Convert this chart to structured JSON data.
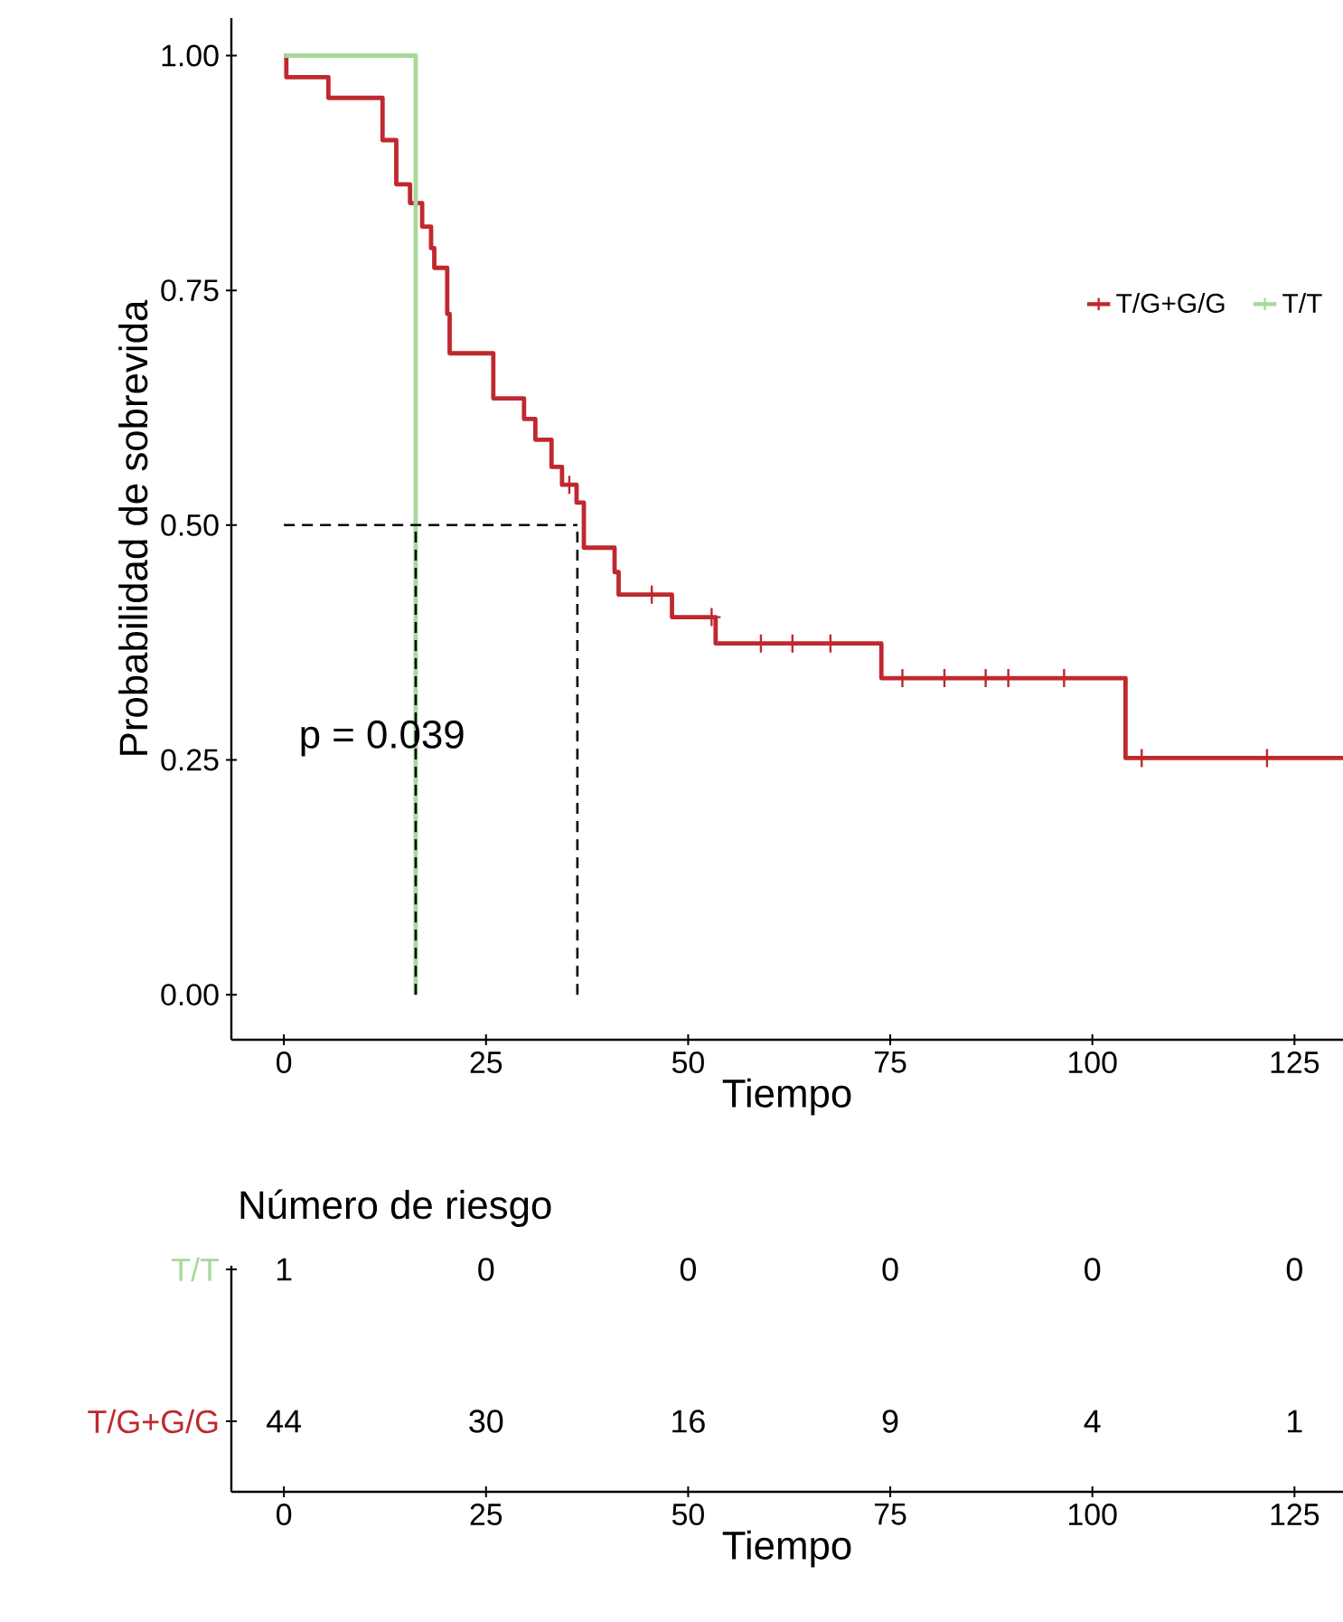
{
  "chart_data": [
    {
      "type": "step",
      "xlabel": "Tiempo",
      "ylabel": "Probabilidad de sobrevida",
      "xlim": [
        -6.5,
        131
      ],
      "ylim": [
        -0.048,
        1.04
      ],
      "xticks": [
        0,
        25,
        50,
        75,
        100,
        125
      ],
      "yticks": [
        {
          "value": 0,
          "label": "0.00"
        },
        {
          "value": 0.25,
          "label": "0.25"
        },
        {
          "value": 0.5,
          "label": "0.50"
        },
        {
          "value": 0.75,
          "label": "0.75"
        },
        {
          "value": 1,
          "label": "1.00"
        }
      ],
      "legend": "right",
      "grid": false,
      "annotations": [
        "p = 0.039"
      ],
      "series": [
        {
          "name": "T/G+G/G",
          "color": "#c0282f",
          "type": "step",
          "x": [
            0,
            0.3,
            5.5,
            12.2,
            13.9,
            15.6,
            17.1,
            18.2,
            18.6,
            20.2,
            20.5,
            25.9,
            29.7,
            31.1,
            33.1,
            34.4,
            36.2,
            37.1,
            40.9,
            41.4,
            48.0,
            53.4,
            73.9,
            104.1,
            131
          ],
          "values": [
            1.0,
            0.977,
            0.955,
            0.91,
            0.863,
            0.843,
            0.818,
            0.795,
            0.774,
            0.725,
            0.683,
            0.635,
            0.613,
            0.591,
            0.562,
            0.543,
            0.524,
            0.476,
            0.45,
            0.426,
            0.402,
            0.374,
            0.337,
            0.252,
            0.252
          ]
        },
        {
          "name": "T/T",
          "color": "#a6d99a",
          "type": "step",
          "x": [
            0,
            16.3
          ],
          "values": [
            1.0,
            0.0
          ]
        },
        {
          "color": "#c0282f",
          "type": "scatter",
          "marker": "cross",
          "x": [
            35.3,
            45.5,
            52.9,
            59.0,
            62.9,
            67.6,
            76.5,
            81.7,
            86.8,
            89.6,
            96.5,
            106.1,
            121.6
          ],
          "values": [
            0.543,
            0.426,
            0.402,
            0.374,
            0.374,
            0.374,
            0.337,
            0.337,
            0.337,
            0.337,
            0.337,
            0.252,
            0.252
          ]
        },
        {
          "color": "#000000",
          "type": "line",
          "line_style": "dashed",
          "x": [
            0,
            36.3
          ],
          "values": [
            0.5,
            0.5
          ]
        },
        {
          "color": "#000000",
          "type": "line",
          "line_style": "dashed",
          "x": [
            16.3,
            16.3
          ],
          "values": [
            0,
            0.5
          ]
        },
        {
          "color": "#000000",
          "type": "line",
          "line_style": "dashed",
          "x": [
            36.3,
            36.3
          ],
          "values": [
            0,
            0.5
          ]
        }
      ]
    },
    {
      "type": "heatmap",
      "title": "Número de riesgo",
      "xlabel": "Tiempo",
      "categories": [
        "0",
        "25",
        "50",
        "75",
        "100",
        "125"
      ],
      "y_categories": [
        "T/T",
        "T/G+G/G"
      ],
      "colors": [
        "#a6d99a",
        "#c0282f"
      ],
      "cells": [
        [
          1,
          0,
          0,
          0,
          0,
          0
        ],
        [
          44,
          30,
          16,
          9,
          4,
          1
        ]
      ],
      "data_labels": true
    }
  ]
}
